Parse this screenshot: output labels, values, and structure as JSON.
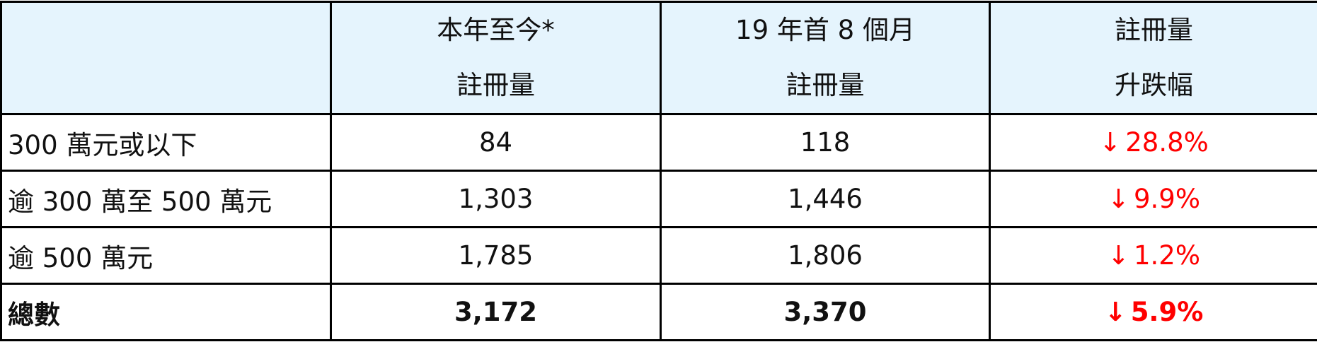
{
  "header": {
    "col0": "",
    "col1": [
      "本年至今*",
      "註冊量"
    ],
    "col2": [
      "19 年首 8 個月",
      "註冊量"
    ],
    "col3": [
      "註冊量",
      "升跌幅"
    ]
  },
  "rows": [
    {
      "label": "300 萬元或以下",
      "ytd": "84",
      "prev": "118",
      "arrow": "↓",
      "change": "28.8%"
    },
    {
      "label": "逾 300 萬至 500 萬元",
      "ytd": "1,303",
      "prev": "1,446",
      "arrow": "↓",
      "change": "9.9%"
    },
    {
      "label": "逾 500 萬元",
      "ytd": "1,785",
      "prev": "1,806",
      "arrow": "↓",
      "change": "1.2%"
    },
    {
      "label": "總數",
      "ytd": "3,172",
      "prev": "3,370",
      "arrow": "↓",
      "change": "5.9%"
    }
  ],
  "colors": {
    "header_bg": "#e5f4fd",
    "decrease": "#ff0000"
  }
}
